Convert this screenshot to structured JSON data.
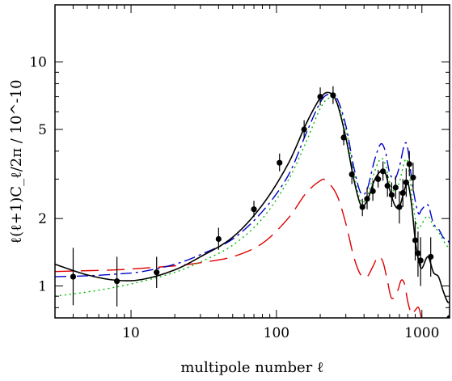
{
  "chart_data": {
    "type": "line",
    "xlabel": "multipole number ℓ",
    "ylabel": "ℓ(ℓ+1)C_ℓ/2π / 10^-10",
    "xscale": "log",
    "yscale": "log",
    "xlim": [
      3,
      1550
    ],
    "ylim": [
      0.72,
      18
    ],
    "xticks": [
      {
        "value": 10,
        "label": "10"
      },
      {
        "value": 100,
        "label": "100"
      },
      {
        "value": 1000,
        "label": "1000"
      }
    ],
    "yticks": [
      {
        "value": 1,
        "label": "1"
      },
      {
        "value": 2,
        "label": "2"
      },
      {
        "value": 5,
        "label": "5"
      },
      {
        "value": 10,
        "label": "10"
      }
    ],
    "grid": false,
    "legend": "none",
    "series": [
      {
        "style": "solid",
        "color": "#000000",
        "x": [
          3,
          5,
          8,
          12,
          20,
          30,
          50,
          80,
          120,
          160,
          200,
          230,
          260,
          300,
          340,
          380,
          420,
          470,
          520,
          560,
          600,
          650,
          700,
          760,
          800,
          850,
          900,
          950,
          1000,
          1100,
          1200,
          1300,
          1400,
          1500,
          1550
        ],
        "y": [
          1.25,
          1.12,
          1.06,
          1.07,
          1.18,
          1.35,
          1.65,
          2.3,
          3.5,
          5.3,
          6.9,
          7.3,
          6.6,
          4.6,
          3.0,
          2.3,
          2.4,
          2.95,
          3.25,
          3.2,
          2.7,
          2.3,
          2.25,
          2.7,
          2.9,
          2.3,
          1.6,
          1.3,
          1.2,
          1.35,
          1.15,
          1.1,
          0.95,
          0.85,
          0.85
        ]
      },
      {
        "style": "dash-dot",
        "color": "#0000cc",
        "x": [
          3,
          5,
          8,
          12,
          20,
          30,
          50,
          80,
          120,
          160,
          200,
          230,
          260,
          300,
          340,
          380,
          420,
          470,
          520,
          560,
          600,
          650,
          700,
          760,
          800,
          850,
          900,
          950,
          1000,
          1100,
          1200,
          1300,
          1400,
          1500,
          1550
        ],
        "y": [
          1.1,
          1.11,
          1.13,
          1.16,
          1.25,
          1.38,
          1.62,
          2.15,
          3.1,
          4.8,
          6.6,
          7.2,
          6.9,
          5.2,
          3.4,
          2.6,
          2.7,
          3.6,
          4.3,
          4.0,
          3.2,
          3.0,
          3.4,
          4.3,
          4.1,
          3.0,
          2.4,
          2.1,
          2.2,
          2.3,
          1.9,
          1.8,
          1.65,
          1.6,
          1.55
        ]
      },
      {
        "style": "dotted",
        "color": "#00bb00",
        "x": [
          3,
          5,
          8,
          12,
          20,
          30,
          50,
          80,
          120,
          160,
          200,
          230,
          260,
          300,
          340,
          380,
          420,
          470,
          520,
          560,
          600,
          650,
          700,
          760,
          800,
          850,
          900,
          950,
          1000,
          1100,
          1200,
          1300,
          1400,
          1500,
          1550
        ],
        "y": [
          0.9,
          0.94,
          0.99,
          1.05,
          1.15,
          1.28,
          1.52,
          2.0,
          2.95,
          4.4,
          6.2,
          6.9,
          6.6,
          5.0,
          3.2,
          2.4,
          2.5,
          3.2,
          3.7,
          3.5,
          2.9,
          2.65,
          2.9,
          3.6,
          3.55,
          2.6,
          2.0,
          1.8,
          1.9,
          2.05,
          1.85,
          1.75,
          1.6,
          1.5,
          1.45
        ]
      },
      {
        "style": "dashed",
        "color": "#dd0000",
        "x": [
          3,
          5,
          8,
          12,
          20,
          30,
          50,
          80,
          120,
          160,
          200,
          220,
          260,
          300,
          340,
          380,
          420,
          460,
          500,
          540,
          580,
          620,
          680,
          720,
          760,
          800,
          850,
          900,
          950,
          1000
        ],
        "y": [
          1.16,
          1.17,
          1.18,
          1.2,
          1.23,
          1.27,
          1.35,
          1.55,
          2.0,
          2.6,
          2.95,
          2.95,
          2.55,
          1.9,
          1.35,
          1.12,
          1.1,
          1.22,
          1.35,
          1.28,
          1.05,
          0.88,
          0.95,
          1.06,
          1.02,
          0.85,
          0.75,
          0.78,
          0.8,
          0.7
        ]
      },
      {
        "style": "points",
        "color": "#000000",
        "x": [
          4,
          8,
          15,
          40,
          70,
          105,
          155,
          200,
          245,
          290,
          330,
          390,
          420,
          460,
          500,
          540,
          580,
          620,
          660,
          700,
          740,
          780,
          820,
          870,
          900,
          940,
          980,
          1150,
          1550
        ],
        "y": [
          1.1,
          1.05,
          1.15,
          1.62,
          2.2,
          3.55,
          5.0,
          7.0,
          7.1,
          4.6,
          3.15,
          2.25,
          2.45,
          2.65,
          3.0,
          3.25,
          2.8,
          2.55,
          2.75,
          2.25,
          2.6,
          2.9,
          3.5,
          3.05,
          1.6,
          1.4,
          1.3,
          1.35,
          0.72
        ],
        "yerr_low": [
          0.28,
          0.24,
          0.17,
          0.17,
          0.17,
          0.3,
          0.45,
          0.6,
          0.6,
          0.35,
          0.3,
          0.2,
          0.25,
          0.25,
          0.25,
          0.3,
          0.3,
          0.3,
          0.3,
          0.35,
          0.35,
          0.4,
          0.4,
          0.4,
          0.3,
          0.3,
          0.3,
          0.25,
          0.1
        ],
        "yerr_high": [
          0.38,
          0.3,
          0.2,
          0.2,
          0.2,
          0.35,
          0.5,
          0.7,
          0.7,
          0.4,
          0.35,
          0.2,
          0.3,
          0.3,
          0.3,
          0.35,
          0.35,
          0.35,
          0.35,
          0.4,
          0.4,
          0.45,
          0.5,
          0.5,
          0.35,
          0.35,
          0.35,
          0.3,
          0.1
        ]
      }
    ]
  }
}
